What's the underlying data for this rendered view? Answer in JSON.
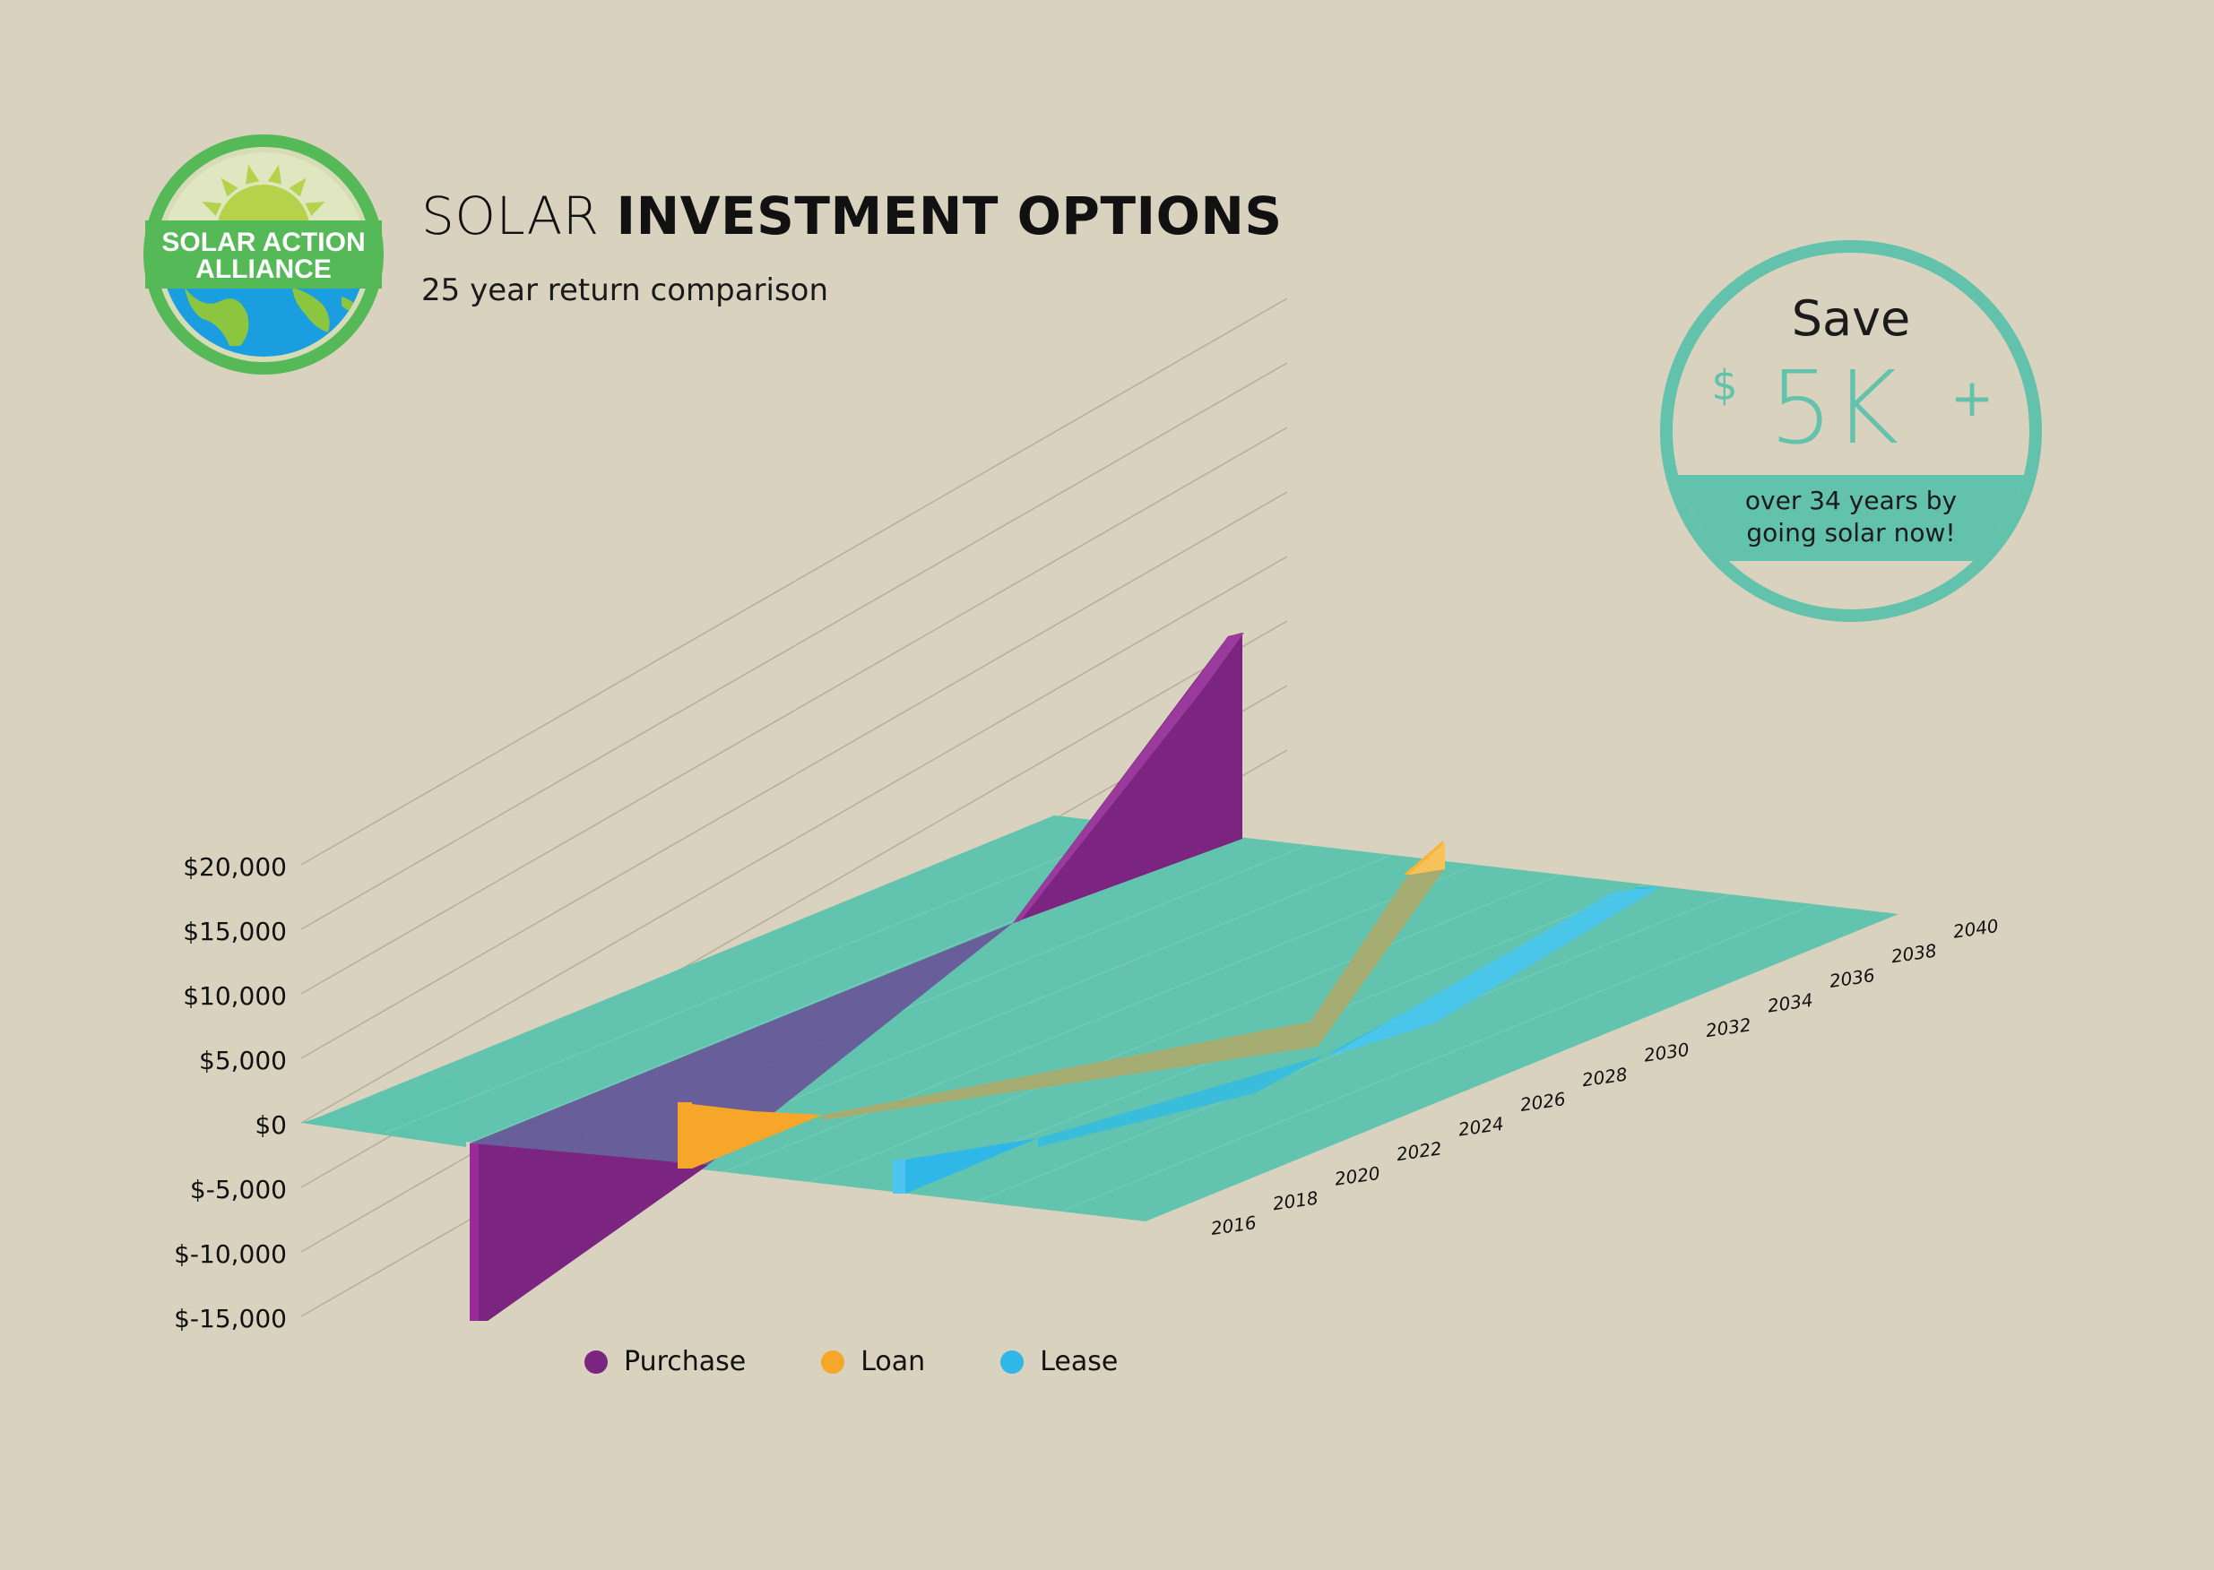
{
  "header": {
    "title_light": "SOLAR ",
    "title_bold": "INVESTMENT OPTIONS",
    "subtitle": "25 year return comparison"
  },
  "logo": {
    "line1": "SOLAR ACTION",
    "line2": "ALLIANCE",
    "colors": {
      "ring": "#55b957",
      "sun": "#b5d34a",
      "earth": "#1b9ee0",
      "land": "#8cc63f"
    }
  },
  "badge": {
    "top": "Save",
    "currency": "$",
    "amount": "5K",
    "plus": "+",
    "line1": "over 34 years by",
    "line2": "going solar now!",
    "color": "#62c2ac"
  },
  "chart_data": {
    "type": "area",
    "y_tick_labels": [
      "$-15,000",
      "$-10,000",
      "$-5,000",
      "$0",
      "$5,000",
      "$10,000",
      "$15,000",
      "$20,000"
    ],
    "y_ticks": [
      -15000,
      -10000,
      -5000,
      0,
      5000,
      10000,
      15000,
      20000
    ],
    "x_tick_labels": [
      "2016",
      "2018",
      "2020",
      "2022",
      "2024",
      "2026",
      "2028",
      "2030",
      "2032",
      "2034",
      "2036",
      "2038",
      "2040"
    ],
    "ylim": [
      -15000,
      20000
    ],
    "xlim": [
      2016,
      2040
    ],
    "plane_color": "#5fc4ad",
    "series": [
      {
        "name": "Purchase",
        "color": "#7b2480",
        "x": [
          2016,
          2040
        ],
        "y": [
          -15000,
          20000
        ]
      },
      {
        "name": "Loan",
        "color": "#f6a628",
        "x": [
          2016,
          2020,
          2037,
          2040
        ],
        "y": [
          0,
          0,
          0,
          1000
        ]
      },
      {
        "name": "Lease",
        "color": "#2fb7e8",
        "x": [
          2016,
          2018,
          2034,
          2040
        ],
        "y": [
          0,
          0,
          0,
          0
        ]
      }
    ],
    "legend_position": "bottom-left"
  },
  "legend": [
    {
      "label": "Purchase",
      "color": "#7b2480"
    },
    {
      "label": "Loan",
      "color": "#f6a628"
    },
    {
      "label": "Lease",
      "color": "#2fb7e8"
    }
  ]
}
